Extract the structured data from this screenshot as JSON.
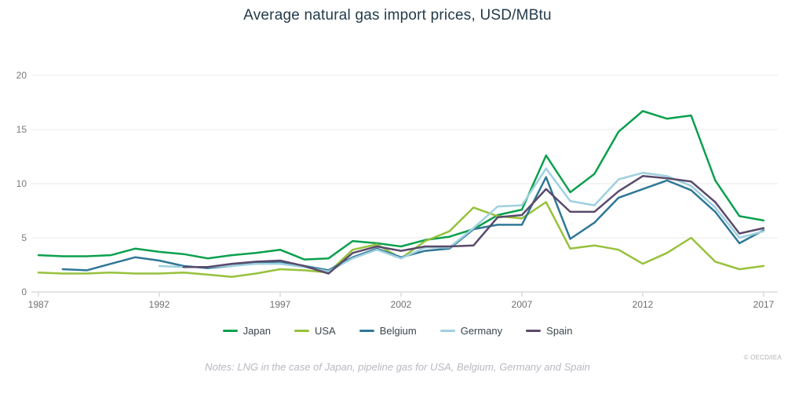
{
  "chart_data": {
    "type": "line",
    "title": "Average natural gas import prices, USD/MBtu",
    "xlabel": "",
    "ylabel": "",
    "unit": "USD/MBtu",
    "xlim": [
      1987,
      2017
    ],
    "ylim": [
      0,
      20
    ],
    "x_ticks": [
      1987,
      1992,
      1997,
      2002,
      2007,
      2012,
      2017
    ],
    "y_ticks": [
      0,
      5,
      10,
      15,
      20
    ],
    "grid": "horizontal",
    "legend_position": "bottom",
    "series": [
      {
        "name": "Japan",
        "color": "#0ba04e",
        "start_year": 1987,
        "values": [
          3.4,
          3.3,
          3.3,
          3.4,
          4.0,
          3.7,
          3.5,
          3.1,
          3.4,
          3.6,
          3.9,
          3.0,
          3.1,
          4.7,
          4.5,
          4.2,
          4.8,
          5.1,
          5.8,
          7.1,
          7.6,
          12.6,
          9.2,
          10.9,
          14.8,
          16.7,
          16.0,
          16.3,
          10.3,
          7.0,
          6.6
        ]
      },
      {
        "name": "USA",
        "color": "#97c13c",
        "start_year": 1987,
        "values": [
          1.8,
          1.7,
          1.7,
          1.8,
          1.7,
          1.7,
          1.8,
          1.6,
          1.4,
          1.7,
          2.1,
          2.0,
          1.8,
          3.9,
          4.4,
          3.1,
          4.7,
          5.6,
          7.8,
          7.0,
          6.8,
          8.3,
          4.0,
          4.3,
          3.9,
          2.6,
          3.6,
          5.0,
          2.8,
          2.1,
          2.4
        ]
      },
      {
        "name": "Belgium",
        "color": "#2f7796",
        "start_year": 1988,
        "values": [
          2.1,
          2.0,
          2.6,
          3.2,
          2.9,
          2.4,
          2.2,
          2.4,
          2.7,
          2.8,
          2.4,
          2.0,
          3.2,
          4.0,
          3.2,
          3.8,
          4.0,
          5.8,
          6.2,
          6.2,
          10.6,
          4.9,
          6.4,
          8.7,
          9.5,
          10.3,
          9.4,
          7.4,
          4.5,
          5.7
        ]
      },
      {
        "name": "Germany",
        "color": "#9fd0e0",
        "start_year": 1992,
        "values": [
          2.4,
          2.3,
          2.3,
          2.4,
          2.6,
          2.6,
          2.3,
          1.9,
          3.1,
          3.9,
          3.1,
          4.1,
          4.1,
          5.9,
          7.9,
          8.0,
          11.4,
          8.4,
          8.0,
          10.4,
          11.0,
          10.7,
          9.8,
          7.8,
          5.0,
          5.6
        ]
      },
      {
        "name": "Spain",
        "color": "#5a4a6b",
        "start_year": 1993,
        "values": [
          2.3,
          2.3,
          2.6,
          2.8,
          2.9,
          2.4,
          1.7,
          3.6,
          4.2,
          3.8,
          4.2,
          4.2,
          4.3,
          6.9,
          7.1,
          9.5,
          7.4,
          7.4,
          9.3,
          10.7,
          10.5,
          10.2,
          8.3,
          5.4,
          5.9
        ]
      }
    ]
  },
  "notes": "Notes: LNG in the case of Japan, pipeline gas for USA, Belgium, Germany and Spain",
  "copyright": "© OECD/IEA"
}
